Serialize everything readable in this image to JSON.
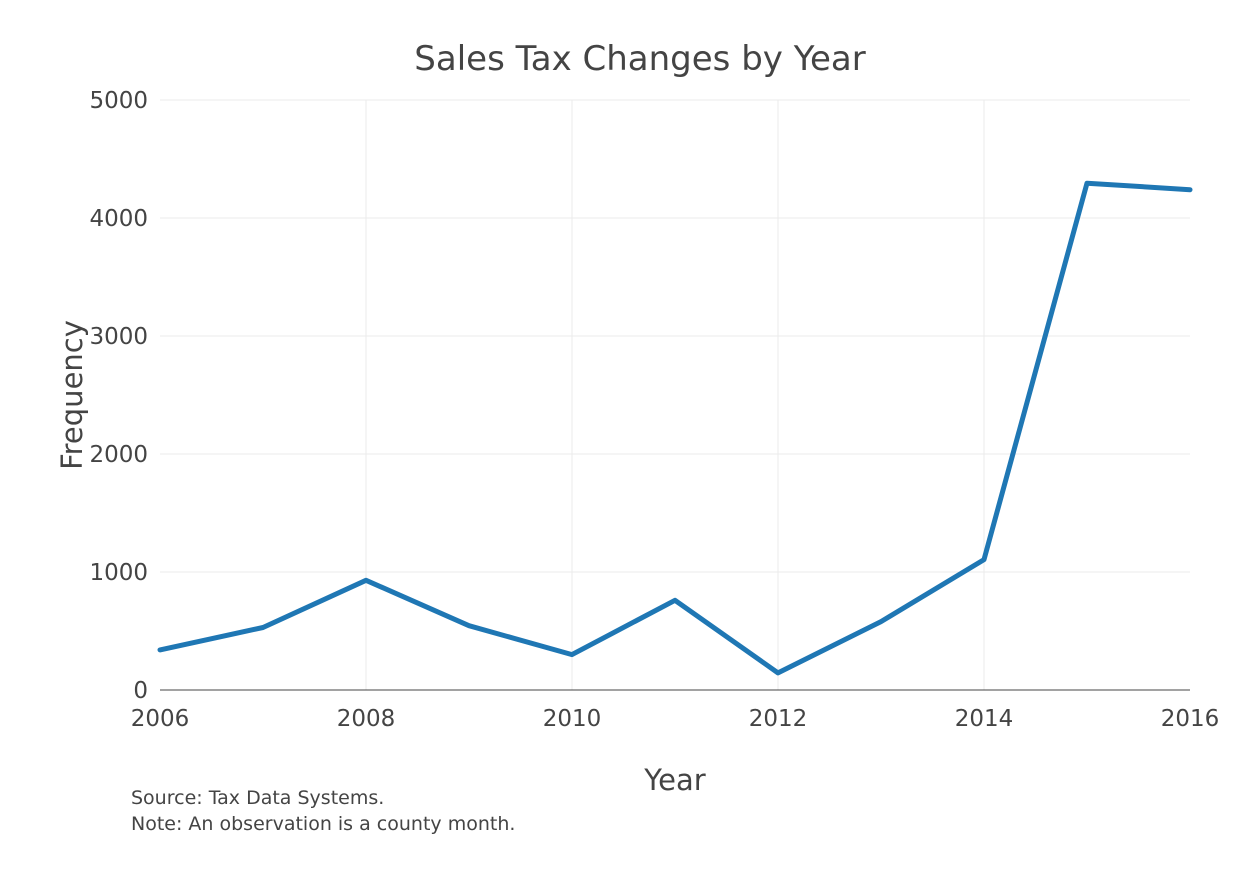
{
  "chart_data": {
    "type": "line",
    "title": "Sales Tax Changes by Year",
    "xlabel": "Year",
    "ylabel": "Frequency",
    "xlim": [
      2006,
      2016
    ],
    "ylim": [
      0,
      5000
    ],
    "xticks": [
      "2006",
      "2008",
      "2010",
      "2012",
      "2014",
      "2016"
    ],
    "yticks": [
      "0",
      "1000",
      "2000",
      "3000",
      "4000",
      "5000"
    ],
    "grid": true,
    "series": [
      {
        "color": "#1f77b4",
        "x": [
          2006,
          2007,
          2008,
          2009,
          2010,
          2011,
          2012,
          2013,
          2014,
          2015,
          2016
        ],
        "y": [
          340,
          530,
          930,
          545,
          300,
          760,
          145,
          580,
          1105,
          4295,
          4240
        ]
      }
    ],
    "notes": [
      "Source: Tax Data Systems.",
      "Note: An observation is a county month."
    ]
  }
}
